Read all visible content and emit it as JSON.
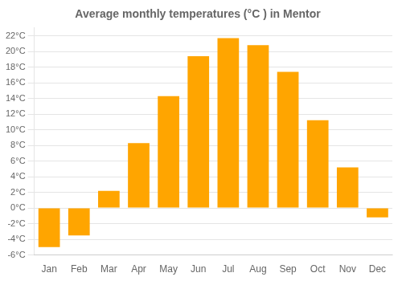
{
  "chart_data": {
    "type": "bar",
    "title": "Average monthly temperatures (°C ) in Mentor",
    "categories": [
      "Jan",
      "Feb",
      "Mar",
      "Apr",
      "May",
      "Jun",
      "Jul",
      "Aug",
      "Sep",
      "Oct",
      "Nov",
      "Dec"
    ],
    "values": [
      -5.0,
      -3.5,
      2.2,
      8.3,
      14.3,
      19.4,
      21.7,
      20.8,
      17.4,
      11.2,
      5.2,
      -1.2
    ],
    "color": "#FFA500",
    "ylim": [
      -6,
      23
    ],
    "yticks": [
      {
        "value": -6,
        "label": "-6°C"
      },
      {
        "value": -4,
        "label": "-4°C"
      },
      {
        "value": -2,
        "label": "-2°C"
      },
      {
        "value": 0,
        "label": "0°C"
      },
      {
        "value": 2,
        "label": "2°C"
      },
      {
        "value": 4,
        "label": "4°C"
      },
      {
        "value": 6,
        "label": "6°C"
      },
      {
        "value": 8,
        "label": "8°C"
      },
      {
        "value": 10,
        "label": "10°C"
      },
      {
        "value": 12,
        "label": "12°C"
      },
      {
        "value": 14,
        "label": "14°C"
      },
      {
        "value": 16,
        "label": "16°C"
      },
      {
        "value": 18,
        "label": "18°C"
      },
      {
        "value": 20,
        "label": "20°C"
      },
      {
        "value": 22,
        "label": "22°C"
      }
    ],
    "grid": true
  }
}
